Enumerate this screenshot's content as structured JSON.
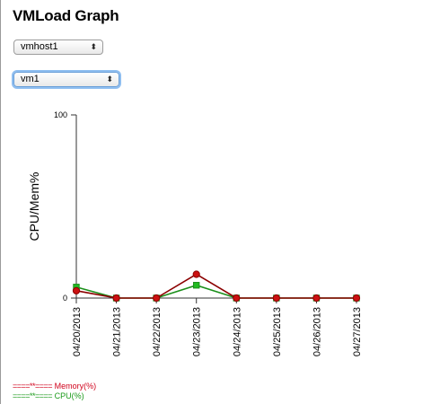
{
  "page": {
    "title": "VMLoad Graph"
  },
  "controls": {
    "host_select": {
      "value": "vmhost1",
      "arrow": "⬍"
    },
    "vm_select": {
      "value": "vm1",
      "arrow": "⬍"
    }
  },
  "legend": {
    "memory": {
      "marker": "====**====",
      "label": "Memory(%)",
      "color": "#d0021b"
    },
    "cpu": {
      "marker": "====**====",
      "label": "CPU(%)",
      "color": "#1a9a1a"
    }
  },
  "chart_data": {
    "type": "line",
    "ylabel": "CPU/Mem%",
    "ylim": [
      0,
      100
    ],
    "yticks": [
      0,
      100
    ],
    "grid": false,
    "categories": [
      "04/20/2013",
      "04/21/2013",
      "04/22/2013",
      "04/23/2013",
      "04/24/2013",
      "04/25/2013",
      "04/26/2013",
      "04/27/2013"
    ],
    "series": [
      {
        "name": "Memory(%)",
        "color": "#8b0000",
        "marker_color": "#cc1111",
        "marker": "circle",
        "values": [
          4,
          0,
          0,
          13,
          0,
          0,
          0,
          0
        ]
      },
      {
        "name": "CPU(%)",
        "color": "#1a8f1a",
        "marker_color": "#22bb22",
        "marker": "square",
        "values": [
          6,
          0,
          0,
          7,
          0,
          0,
          0,
          0
        ]
      }
    ]
  }
}
